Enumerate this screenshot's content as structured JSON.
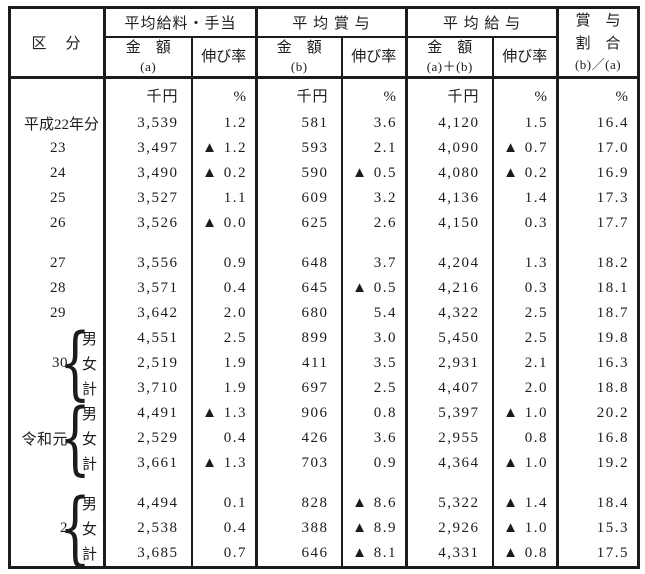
{
  "colors": {
    "text": "#1c1c1c",
    "background": "#ffffff",
    "border": "#1c1c1c"
  },
  "table": {
    "category_header": "区　分",
    "col_groups": [
      {
        "title": "平均給料・手当",
        "amount_label": "金　額",
        "amount_sub": "(a)",
        "rate_label": "伸び率"
      },
      {
        "title": "平 均 賞 与",
        "amount_label": "金　額",
        "amount_sub": "(b)",
        "rate_label": "伸び率"
      },
      {
        "title": "平 均 給 与",
        "amount_label": "金　額",
        "amount_sub": "(a)＋(b)",
        "rate_label": "伸び率"
      }
    ],
    "ratio_header": {
      "line1": "賞　与",
      "line2": "割　合",
      "line3": "(b)／(a)"
    },
    "negative_marker": "▲",
    "rows": [
      {
        "units": true,
        "values": [
          "千円",
          "%",
          "千円",
          "%",
          "千円",
          "%",
          "%"
        ]
      },
      {
        "label": "平成22年分",
        "values": [
          "3,539",
          "1.2",
          "581",
          "3.6",
          "4,120",
          "1.5",
          "16.4"
        ]
      },
      {
        "label": "23",
        "values": [
          "3,497",
          "▲ 1.2",
          "593",
          "2.1",
          "4,090",
          "▲ 0.7",
          "17.0"
        ]
      },
      {
        "label": "24",
        "values": [
          "3,490",
          "▲ 0.2",
          "590",
          "▲ 0.5",
          "4,080",
          "▲ 0.2",
          "16.9"
        ]
      },
      {
        "label": "25",
        "values": [
          "3,527",
          "1.1",
          "609",
          "3.2",
          "4,136",
          "1.4",
          "17.3"
        ]
      },
      {
        "label": "26",
        "values": [
          "3,526",
          "▲ 0.0",
          "625",
          "2.6",
          "4,150",
          "0.3",
          "17.7"
        ]
      },
      {
        "gap": true
      },
      {
        "label": "27",
        "values": [
          "3,556",
          "0.9",
          "648",
          "3.7",
          "4,204",
          "1.3",
          "18.2"
        ]
      },
      {
        "label": "28",
        "values": [
          "3,571",
          "0.4",
          "645",
          "▲ 0.5",
          "4,216",
          "0.3",
          "18.1"
        ]
      },
      {
        "label": "29",
        "values": [
          "3,642",
          "2.0",
          "680",
          "5.4",
          "4,322",
          "2.5",
          "18.7"
        ]
      },
      {
        "sex": "男",
        "brace": "start",
        "values": [
          "4,551",
          "2.5",
          "899",
          "3.0",
          "5,450",
          "2.5",
          "19.8"
        ]
      },
      {
        "era": "30",
        "sex": "女",
        "brace": "mid",
        "values": [
          "2,519",
          "1.9",
          "411",
          "3.5",
          "2,931",
          "2.1",
          "16.3"
        ]
      },
      {
        "sex": "計",
        "brace": "end",
        "values": [
          "3,710",
          "1.9",
          "697",
          "2.5",
          "4,407",
          "2.0",
          "18.8"
        ]
      },
      {
        "sex": "男",
        "brace": "start",
        "values": [
          "4,491",
          "▲ 1.3",
          "906",
          "0.8",
          "5,397",
          "▲ 1.0",
          "20.2"
        ]
      },
      {
        "era": "令和元",
        "sex": "女",
        "brace": "mid",
        "values": [
          "2,529",
          "0.4",
          "426",
          "3.6",
          "2,955",
          "0.8",
          "16.8"
        ]
      },
      {
        "sex": "計",
        "brace": "end",
        "values": [
          "3,661",
          "▲ 1.3",
          "703",
          "0.9",
          "4,364",
          "▲ 1.0",
          "19.2"
        ]
      },
      {
        "gap": true
      },
      {
        "sex": "男",
        "brace": "start",
        "values": [
          "4,494",
          "0.1",
          "828",
          "▲ 8.6",
          "5,322",
          "▲ 1.4",
          "18.4"
        ]
      },
      {
        "era": "2",
        "sex": "女",
        "brace": "mid",
        "values": [
          "2,538",
          "0.4",
          "388",
          "▲ 8.9",
          "2,926",
          "▲ 1.0",
          "15.3"
        ]
      },
      {
        "sex": "計",
        "brace": "end",
        "values": [
          "3,685",
          "0.7",
          "646",
          "▲ 8.1",
          "4,331",
          "▲ 0.8",
          "17.5"
        ]
      }
    ]
  }
}
